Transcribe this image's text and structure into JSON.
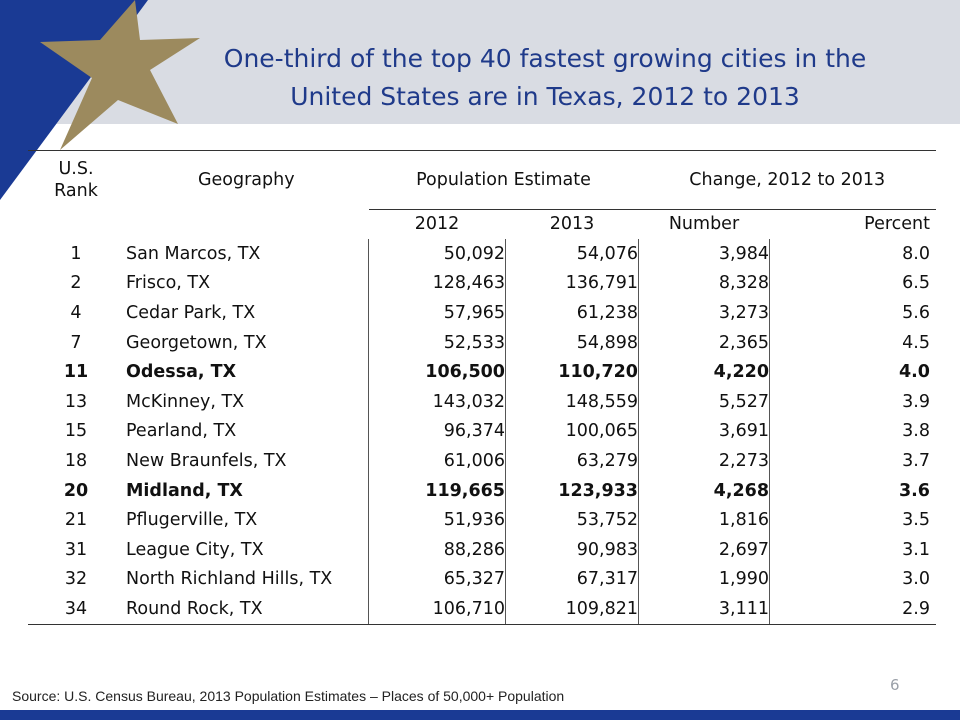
{
  "title": {
    "line1": "One-third of the top 40 fastest growing cities in the",
    "line2": "United States are in Texas, 2012 to 2013"
  },
  "table": {
    "headers": {
      "rank": "U.S.\nRank",
      "geography": "Geography",
      "population": "Population Estimate",
      "change": "Change, 2012 to 2013",
      "y2012": "2012",
      "y2013": "2013",
      "number": "Number",
      "percent": "Percent"
    },
    "rows": [
      {
        "rank": "1",
        "geo": "San Marcos, TX",
        "p2012": "50,092",
        "p2013": "54,076",
        "num": "3,984",
        "pct": "8.0",
        "bold": false
      },
      {
        "rank": "2",
        "geo": "Frisco, TX",
        "p2012": "128,463",
        "p2013": "136,791",
        "num": "8,328",
        "pct": "6.5",
        "bold": false
      },
      {
        "rank": "4",
        "geo": "Cedar Park, TX",
        "p2012": "57,965",
        "p2013": "61,238",
        "num": "3,273",
        "pct": "5.6",
        "bold": false
      },
      {
        "rank": "7",
        "geo": "Georgetown, TX",
        "p2012": "52,533",
        "p2013": "54,898",
        "num": "2,365",
        "pct": "4.5",
        "bold": false
      },
      {
        "rank": "11",
        "geo": "Odessa, TX",
        "p2012": "106,500",
        "p2013": "110,720",
        "num": "4,220",
        "pct": "4.0",
        "bold": true
      },
      {
        "rank": "13",
        "geo": "McKinney, TX",
        "p2012": "143,032",
        "p2013": "148,559",
        "num": "5,527",
        "pct": "3.9",
        "bold": false
      },
      {
        "rank": "15",
        "geo": "Pearland, TX",
        "p2012": "96,374",
        "p2013": "100,065",
        "num": "3,691",
        "pct": "3.8",
        "bold": false
      },
      {
        "rank": "18",
        "geo": "New Braunfels, TX",
        "p2012": "61,006",
        "p2013": "63,279",
        "num": "2,273",
        "pct": "3.7",
        "bold": false
      },
      {
        "rank": "20",
        "geo": "Midland, TX",
        "p2012": "119,665",
        "p2013": "123,933",
        "num": "4,268",
        "pct": "3.6",
        "bold": true
      },
      {
        "rank": "21",
        "geo": "Pflugerville, TX",
        "p2012": "51,936",
        "p2013": "53,752",
        "num": "1,816",
        "pct": "3.5",
        "bold": false
      },
      {
        "rank": "31",
        "geo": "League City, TX",
        "p2012": "88,286",
        "p2013": "90,983",
        "num": "2,697",
        "pct": "3.1",
        "bold": false
      },
      {
        "rank": "32",
        "geo": "North Richland Hills, TX",
        "p2012": "65,327",
        "p2013": "67,317",
        "num": "1,990",
        "pct": "3.0",
        "bold": false
      },
      {
        "rank": "34",
        "geo": "Round Rock, TX",
        "p2012": "106,710",
        "p2013": "109,821",
        "num": "3,111",
        "pct": "2.9",
        "bold": false
      }
    ]
  },
  "source": "Source: U.S. Census Bureau, 2013 Population Estimates – Places of 50,000+ Population",
  "page_number": "6",
  "colors": {
    "title": "#1f3a8a",
    "navy": "#1a3a94",
    "gold": "#9c8a5e",
    "header_band": "#d9dce3"
  },
  "icons": {
    "star": "gold-star-icon"
  }
}
